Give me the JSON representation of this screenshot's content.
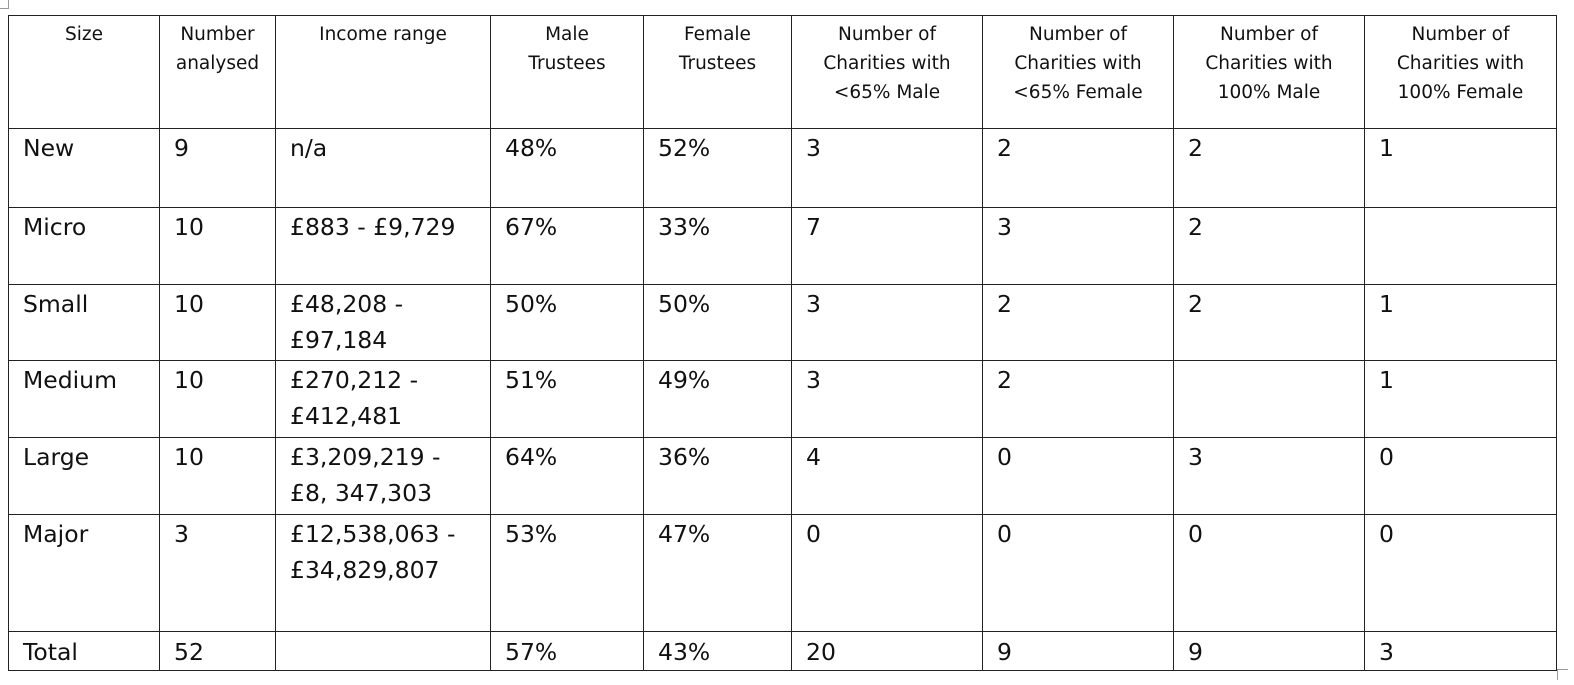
{
  "table": {
    "headers": [
      "Size",
      "Number\nanalysed",
      "Income range",
      "Male\nTrustees",
      "Female\nTrustees",
      "Number of\nCharities with\n<65% Male",
      "Number of\nCharities with\n<65% Female",
      "Number of\nCharities with\n100% Male",
      "Number of\nCharities with\n100% Female"
    ],
    "rows": [
      {
        "size": "New",
        "number_analysed": "9",
        "income_range": "n/a",
        "male_trustees": "48%",
        "female_trustees": "52%",
        "lt65_male": "3",
        "lt65_female": "2",
        "pct100_male": "2",
        "pct100_female": "1"
      },
      {
        "size": "Micro",
        "number_analysed": "10",
        "income_range": "£883 - £9,729",
        "male_trustees": "67%",
        "female_trustees": "33%",
        "lt65_male": "7",
        "lt65_female": "3",
        "pct100_male": "2",
        "pct100_female": ""
      },
      {
        "size": "Small",
        "number_analysed": "10",
        "income_range": "£48,208 -\n£97,184",
        "male_trustees": "50%",
        "female_trustees": "50%",
        "lt65_male": "3",
        "lt65_female": "2",
        "pct100_male": "2",
        "pct100_female": "1"
      },
      {
        "size": "Medium",
        "number_analysed": "10",
        "income_range": "£270,212 -\n£412,481",
        "male_trustees": "51%",
        "female_trustees": "49%",
        "lt65_male": "3",
        "lt65_female": "2",
        "pct100_male": "",
        "pct100_female": "1"
      },
      {
        "size": "Large",
        "number_analysed": "10",
        "income_range": "£3,209,219 -\n£8, 347,303",
        "male_trustees": "64%",
        "female_trustees": "36%",
        "lt65_male": "4",
        "lt65_female": "0",
        "pct100_male": "3",
        "pct100_female": "0"
      },
      {
        "size": "Major",
        "number_analysed": "3",
        "income_range": "£12,538,063 -\n£34,829,807",
        "male_trustees": "53%",
        "female_trustees": "47%",
        "lt65_male": "0",
        "lt65_female": "0",
        "pct100_male": "0",
        "pct100_female": "0"
      },
      {
        "size": "Total",
        "number_analysed": "52",
        "income_range": "",
        "male_trustees": "57%",
        "female_trustees": "43%",
        "lt65_male": "20",
        "lt65_female": "9",
        "pct100_male": "9",
        "pct100_female": "3"
      }
    ]
  }
}
